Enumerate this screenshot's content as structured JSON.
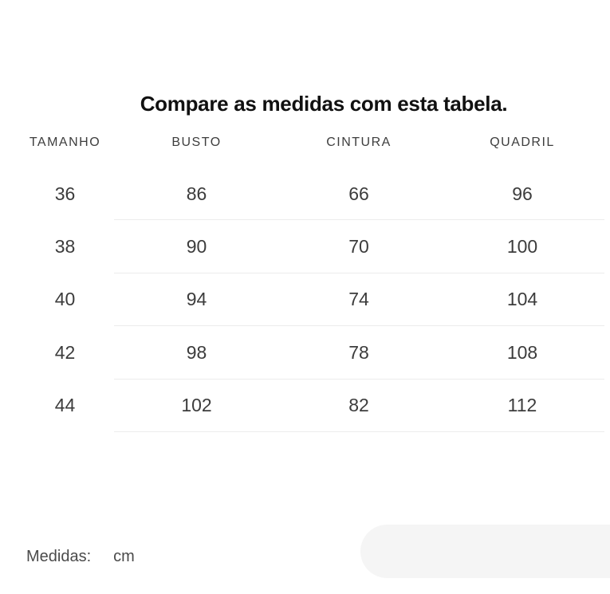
{
  "title": "Compare as medidas com esta tabela.",
  "table": {
    "columns": [
      "TAMANHO",
      "BUSTO",
      "CINTURA",
      "QUADRIL"
    ],
    "rows": [
      [
        "36",
        "86",
        "66",
        "96"
      ],
      [
        "38",
        "90",
        "70",
        "100"
      ],
      [
        "40",
        "94",
        "74",
        "104"
      ],
      [
        "42",
        "98",
        "78",
        "108"
      ],
      [
        "44",
        "102",
        "82",
        "112"
      ]
    ]
  },
  "footer": {
    "label": "Medidas:",
    "unit": "cm"
  },
  "colors": {
    "title_text": "#111111",
    "table_text": "#3c3c3c",
    "divider": "#ececec",
    "pill_background": "#f5f5f5"
  }
}
